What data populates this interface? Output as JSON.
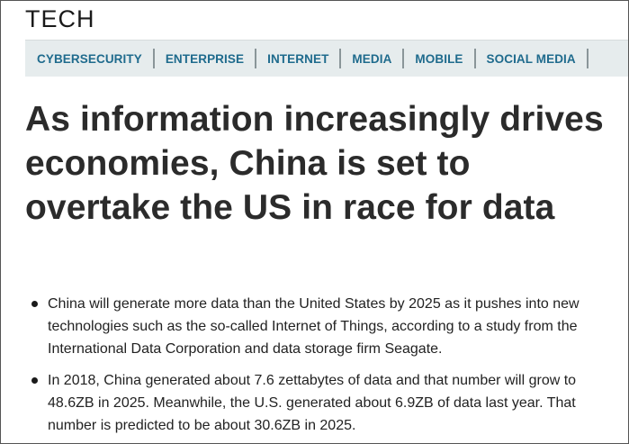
{
  "section": {
    "title": "TECH"
  },
  "nav": {
    "items": [
      {
        "label": "CYBERSECURITY"
      },
      {
        "label": "ENTERPRISE"
      },
      {
        "label": "INTERNET"
      },
      {
        "label": "MEDIA"
      },
      {
        "label": "MOBILE"
      },
      {
        "label": "SOCIAL MEDIA"
      }
    ]
  },
  "article": {
    "headline": "As information increasingly drives economies, China is set to overtake the US in race for data",
    "bullets": [
      {
        "text": "China will generate more data than the United States by 2025 as it pushes into new technologies such as the so-called Internet of Things, according to a study from the International Data Corporation and data storage firm Seagate."
      },
      {
        "text": "In 2018, China generated about 7.6 zettabytes of data and that number will grow to 48.6ZB in 2025. Meanwhile, the U.S. generated about 6.9ZB of data last year. That number is predicted to be about 30.6ZB in 2025."
      }
    ]
  },
  "colors": {
    "nav_background": "#e6eced",
    "nav_link": "#1f6b8d",
    "headline": "#2b2b2b"
  }
}
